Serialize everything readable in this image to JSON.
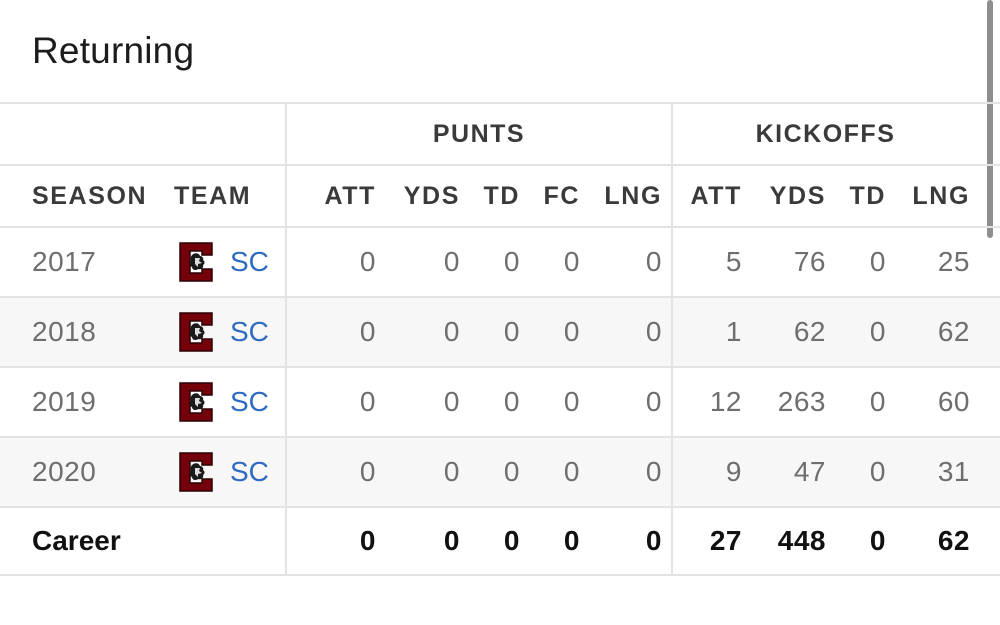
{
  "title": "Returning",
  "groups": {
    "punts": "PUNTS",
    "kickoffs": "KICKOFFS"
  },
  "columns": {
    "season": "SEASON",
    "team": "TEAM",
    "p_att": "ATT",
    "p_yds": "YDS",
    "p_td": "TD",
    "p_fc": "FC",
    "p_lng": "LNG",
    "k_att": "ATT",
    "k_yds": "YDS",
    "k_td": "TD",
    "k_lng": "LNG"
  },
  "rows": [
    {
      "season": "2017",
      "team": "SC",
      "p_att": "0",
      "p_yds": "0",
      "p_td": "0",
      "p_fc": "0",
      "p_lng": "0",
      "k_att": "5",
      "k_yds": "76",
      "k_td": "0",
      "k_lng": "25"
    },
    {
      "season": "2018",
      "team": "SC",
      "p_att": "0",
      "p_yds": "0",
      "p_td": "0",
      "p_fc": "0",
      "p_lng": "0",
      "k_att": "1",
      "k_yds": "62",
      "k_td": "0",
      "k_lng": "62"
    },
    {
      "season": "2019",
      "team": "SC",
      "p_att": "0",
      "p_yds": "0",
      "p_td": "0",
      "p_fc": "0",
      "p_lng": "0",
      "k_att": "12",
      "k_yds": "263",
      "k_td": "0",
      "k_lng": "60"
    },
    {
      "season": "2020",
      "team": "SC",
      "p_att": "0",
      "p_yds": "0",
      "p_td": "0",
      "p_fc": "0",
      "p_lng": "0",
      "k_att": "9",
      "k_yds": "47",
      "k_td": "0",
      "k_lng": "31"
    }
  ],
  "career": {
    "label": "Career",
    "p_att": "0",
    "p_yds": "0",
    "p_td": "0",
    "p_fc": "0",
    "p_lng": "0",
    "k_att": "27",
    "k_yds": "448",
    "k_td": "0",
    "k_lng": "62"
  },
  "colors": {
    "team_link": "#2f6bc1",
    "logo": "#73000a",
    "border": "#e3e3e3",
    "zebra": "#f7f7f7"
  },
  "icons": {
    "team_logo": "south-carolina-gamecocks-logo-icon"
  }
}
